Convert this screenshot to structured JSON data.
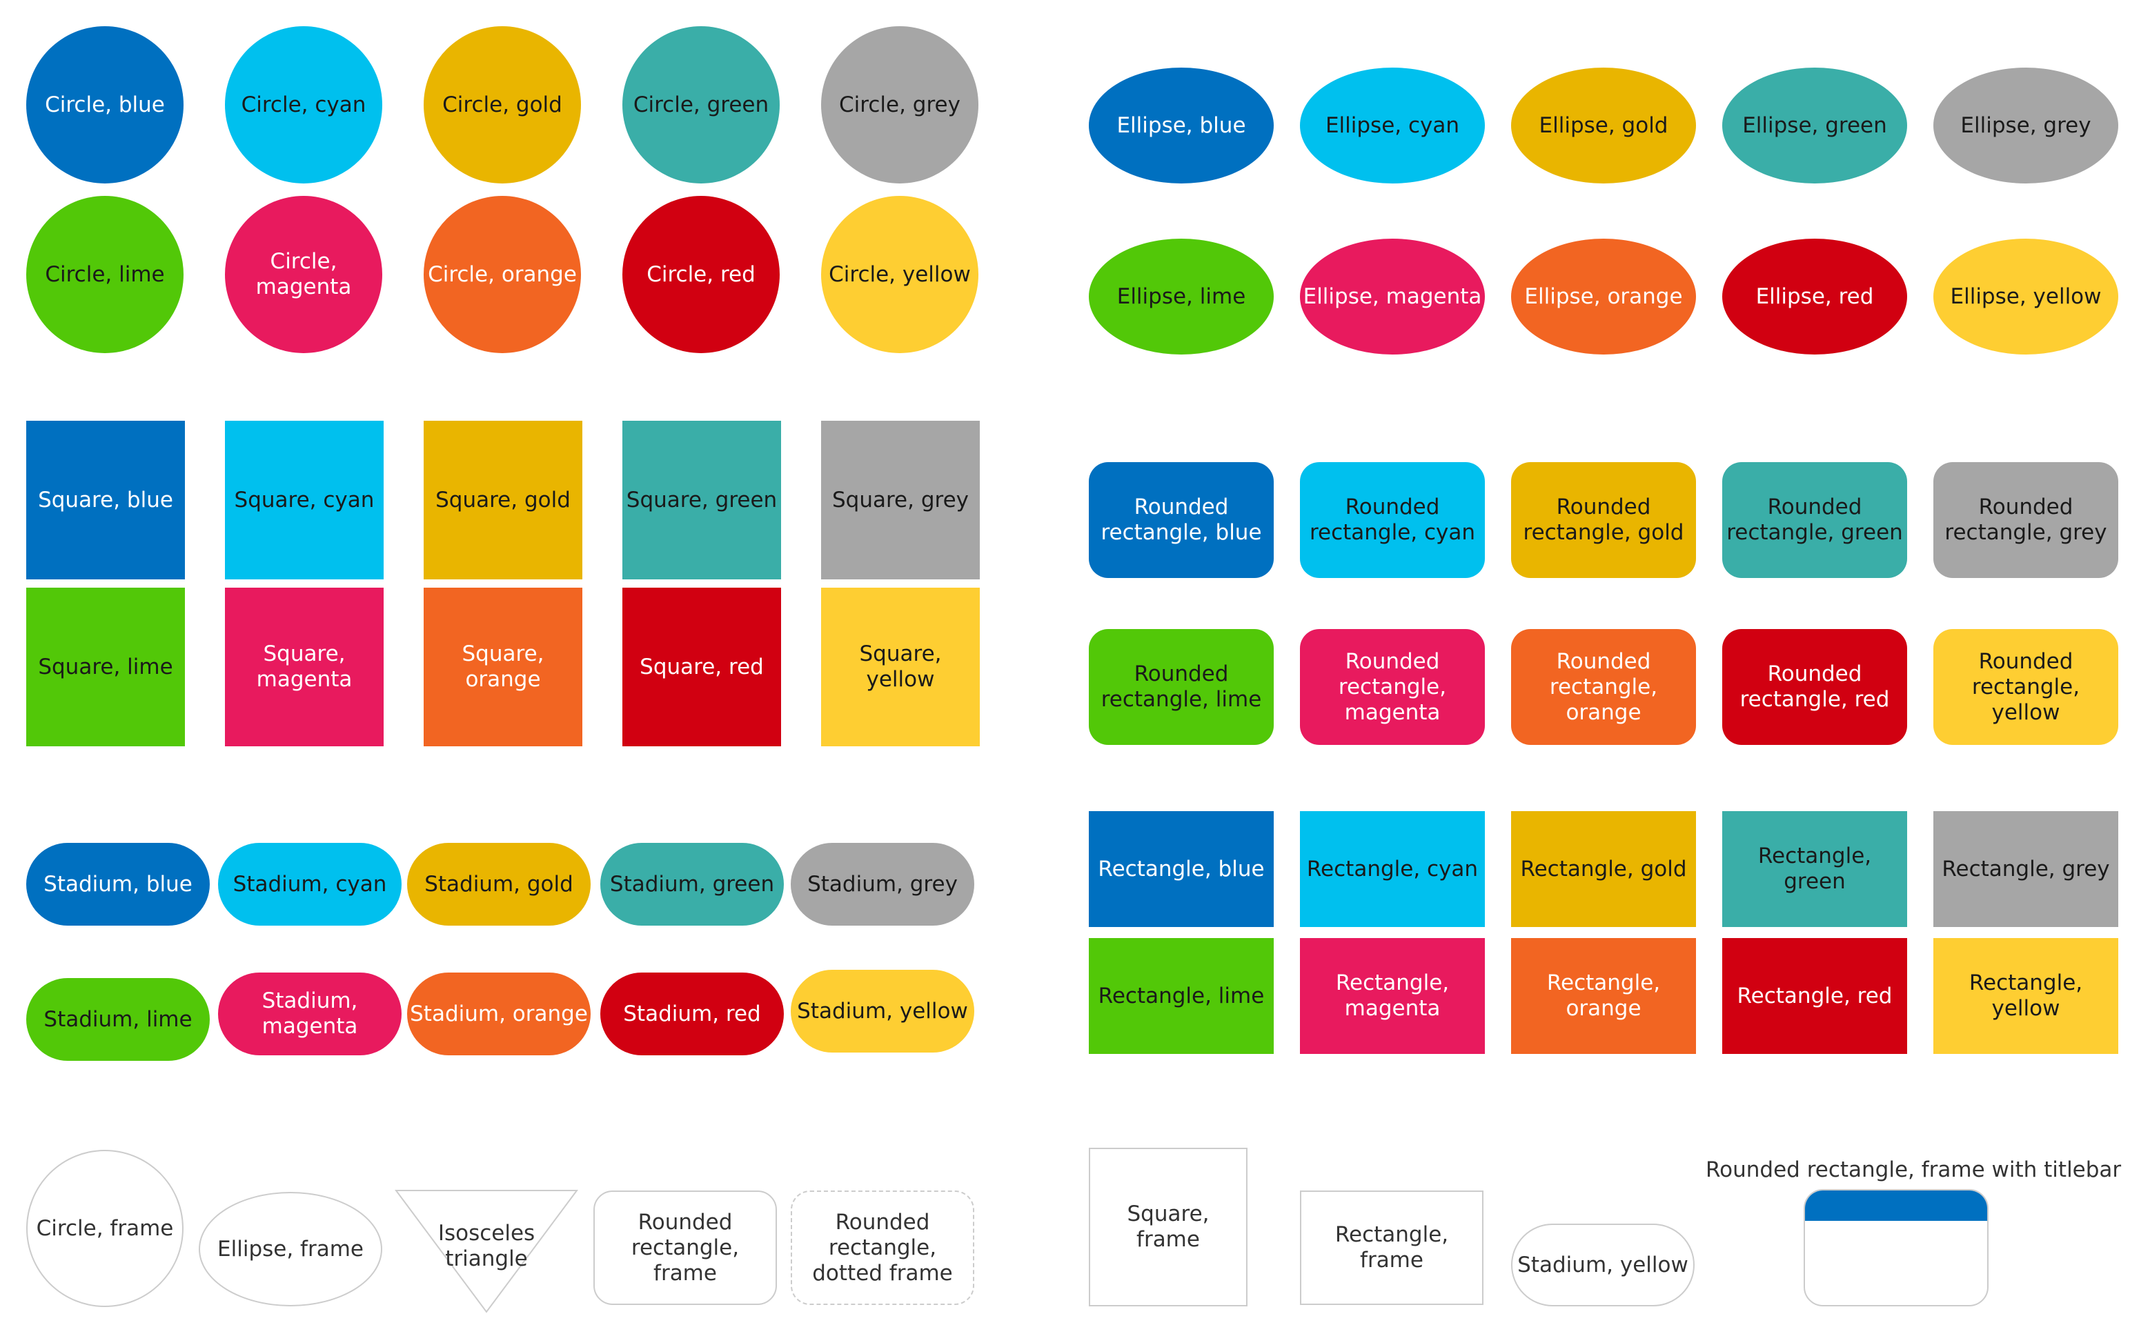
{
  "colors": {
    "blue": "#0070c0",
    "cyan": "#00c0ee",
    "gold": "#e9b500",
    "green": "#3aaea8",
    "grey": "#a6a6a6",
    "lime": "#52c808",
    "magenta": "#e81a5e",
    "orange": "#f26522",
    "red": "#d10011",
    "yellow": "#fece32",
    "frame": "#cccccc",
    "titlebar": "#0070c0"
  },
  "circles": [
    "Circle, blue",
    "Circle, cyan",
    "Circle, gold",
    "Circle, green",
    "Circle, grey",
    "Circle, lime",
    "Circle, magenta",
    "Circle, orange",
    "Circle, red",
    "Circle, yellow"
  ],
  "ellipses": [
    "Ellipse, blue",
    "Ellipse, cyan",
    "Ellipse, gold",
    "Ellipse, green",
    "Ellipse, grey",
    "Ellipse, lime",
    "Ellipse, magenta",
    "Ellipse, orange",
    "Ellipse, red",
    "Ellipse, yellow"
  ],
  "squares": [
    "Square, blue",
    "Square, cyan",
    "Square, gold",
    "Square, green",
    "Square, grey",
    "Square, lime",
    "Square, magenta",
    "Square, orange",
    "Square, red",
    "Square, yellow"
  ],
  "rounded_rectangles": [
    "Rounded rectangle, blue",
    "Rounded rectangle, cyan",
    "Rounded rectangle, gold",
    "Rounded rectangle, green",
    "Rounded rectangle, grey",
    "Rounded rectangle, lime",
    "Rounded rectangle, magenta",
    "Rounded rectangle, orange",
    "Rounded rectangle, red",
    "Rounded rectangle, yellow"
  ],
  "stadiums": [
    "Stadium, blue",
    "Stadium, cyan",
    "Stadium, gold",
    "Stadium, green",
    "Stadium, grey",
    "Stadium, lime",
    "Stadium, magenta",
    "Stadium, orange",
    "Stadium, red",
    "Stadium, yellow"
  ],
  "rectangles": [
    "Rectangle, blue",
    "Rectangle, cyan",
    "Rectangle, gold",
    "Rectangle, green",
    "Rectangle, grey",
    "Rectangle, lime",
    "Rectangle, magenta",
    "Rectangle, orange",
    "Rectangle, red",
    "Rectangle, yellow"
  ],
  "frames": {
    "circle": "Circle, frame",
    "ellipse": "Ellipse, frame",
    "triangle": "Isosceles triangle",
    "rounded_rectangle": "Rounded rectangle, frame",
    "rounded_rectangle_dotted": "Rounded rectangle, dotted frame",
    "square": "Square, frame",
    "rectangle": "Rectangle, frame",
    "stadium": "Stadium, yellow",
    "titlebar_caption": "Rounded rectangle, frame with titlebar"
  }
}
